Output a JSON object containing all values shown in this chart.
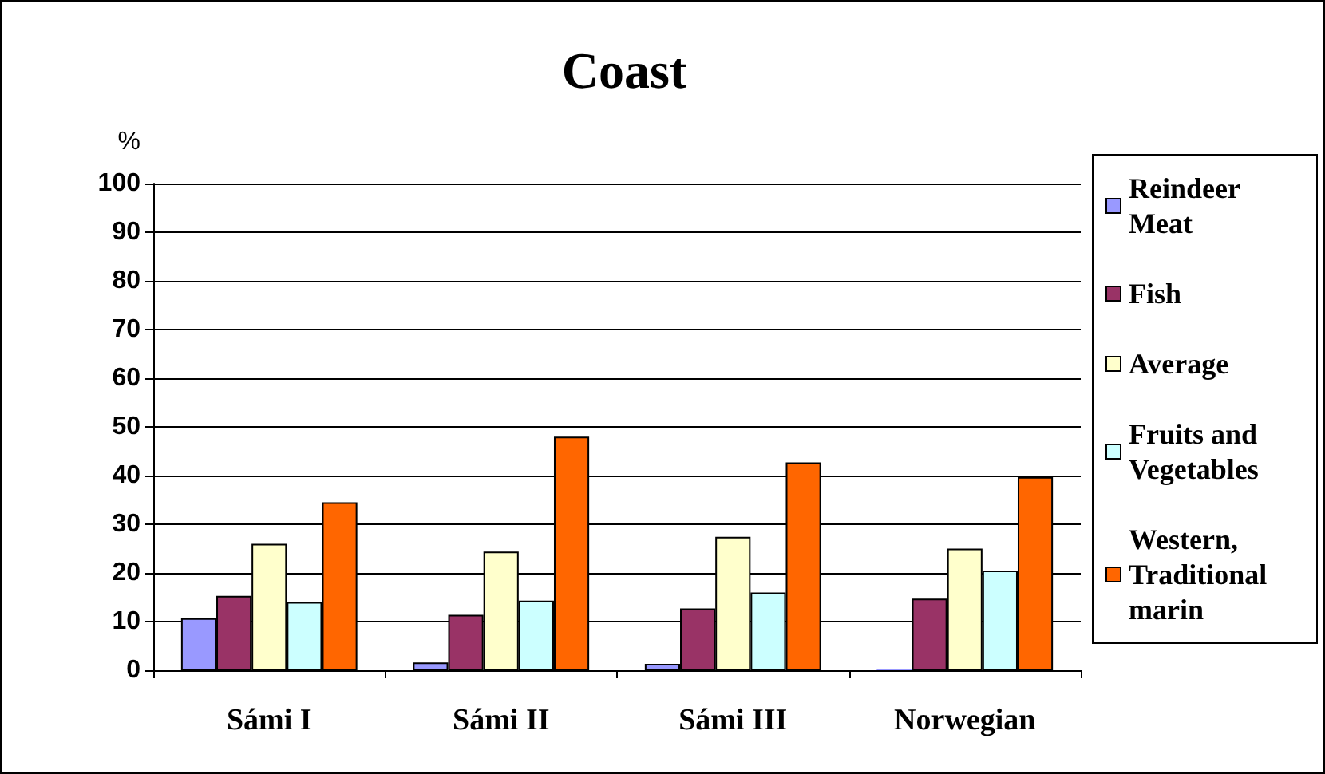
{
  "chart_data": {
    "type": "bar",
    "title": "Coast",
    "ylabel": "%",
    "categories": [
      "Sámi I",
      "Sámi II",
      "Sámi III",
      "Norwegian"
    ],
    "series": [
      {
        "name": "Reindeer Meat",
        "color": "#9999ff",
        "values": [
          10.7,
          1.6,
          1.3,
          0.3
        ]
      },
      {
        "name": "Fish",
        "color": "#993366",
        "values": [
          15.3,
          11.4,
          12.7,
          14.7
        ]
      },
      {
        "name": "Average",
        "color": "#ffffcc",
        "values": [
          26,
          24.4,
          27.4,
          25
        ]
      },
      {
        "name": "Fruits and Vegetables",
        "color": "#ccffff",
        "values": [
          14,
          14.3,
          16,
          20.5
        ]
      },
      {
        "name": "Western, Traditional marin",
        "color": "#ff6600",
        "values": [
          34.5,
          48,
          42.7,
          39.7
        ]
      }
    ],
    "ylim": [
      0,
      100
    ],
    "yticks": [
      0,
      10,
      20,
      30,
      40,
      50,
      60,
      70,
      80,
      90,
      100
    ],
    "grid": "y",
    "legend": "right"
  }
}
